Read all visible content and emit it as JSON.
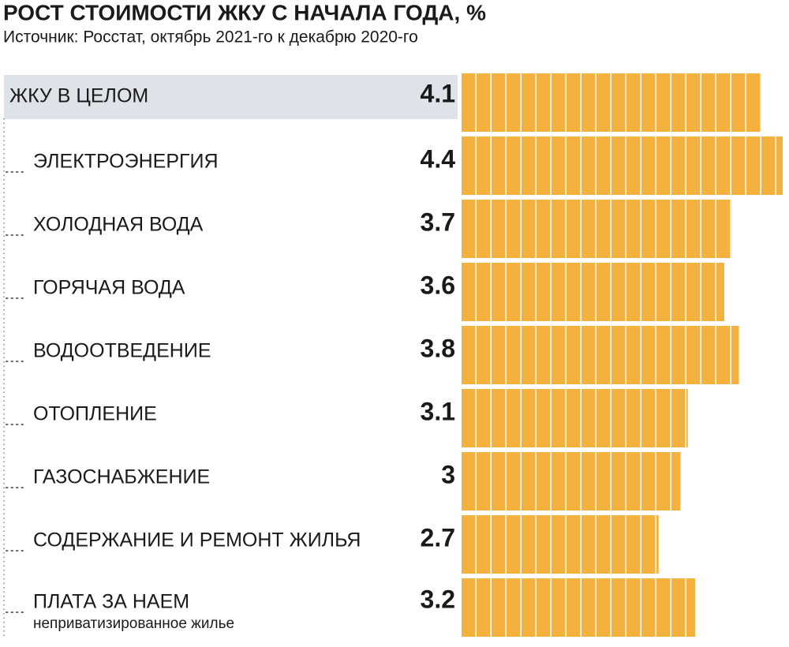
{
  "chart_data": {
    "type": "barh",
    "title": "РОСТ СТОИМОСТИ ЖКУ С НАЧАЛА ГОДА, %",
    "subtitle": "Источник: Росстат, октябрь 2021-го к декабрю 2020-го",
    "categories": [
      "ЖКУ В ЦЕЛОМ",
      "ЭЛЕКТРОЭНЕРГИЯ",
      "ХОЛОДНАЯ ВОДА",
      "ГОРЯЧАЯ ВОДА",
      "ВОДООТВЕДЕНИЕ",
      "ОТОПЛЕНИЕ",
      "ГАЗОСНАБЖЕНИЕ",
      "СОДЕРЖАНИЕ И РЕМОНТ ЖИЛЬЯ",
      "ПЛАТА ЗА НАЕМ"
    ],
    "annotation": "неприватизированное жилье",
    "values": [
      4.1,
      4.4,
      3.7,
      3.6,
      3.8,
      3.1,
      3,
      2.7,
      3.2
    ],
    "color": "#f5b13d"
  }
}
